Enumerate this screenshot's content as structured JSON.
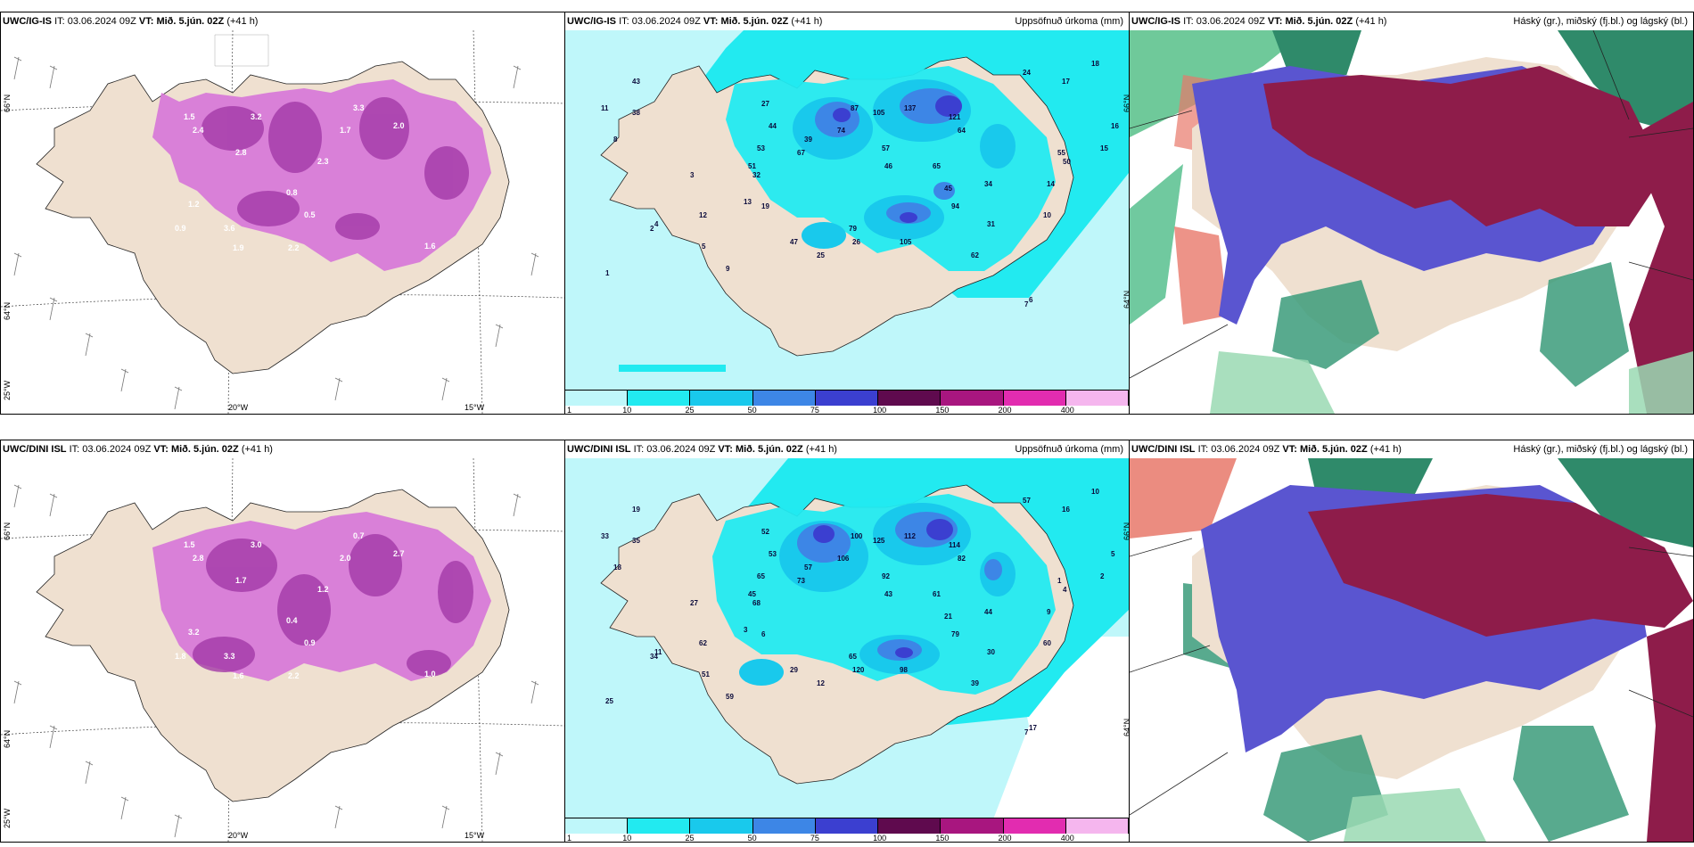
{
  "rows": [
    {
      "model": "UWC/IG-IS",
      "it_label": "IT:",
      "it_value": "03.06.2024 09Z",
      "vt_label": "VT:",
      "vt_value": "Mið. 5.jún. 02Z",
      "lead": "(+41 h)",
      "precip_labels": [
        {
          "v": "43"
        },
        {
          "v": "38"
        },
        {
          "v": "27"
        },
        {
          "v": "44"
        },
        {
          "v": "39"
        },
        {
          "v": "53"
        },
        {
          "v": "51"
        },
        {
          "v": "32"
        },
        {
          "v": "67"
        },
        {
          "v": "74"
        },
        {
          "v": "87"
        },
        {
          "v": "105"
        },
        {
          "v": "137"
        },
        {
          "v": "121"
        },
        {
          "v": "64"
        },
        {
          "v": "57"
        },
        {
          "v": "46"
        },
        {
          "v": "65"
        },
        {
          "v": "45"
        },
        {
          "v": "34"
        },
        {
          "v": "94"
        },
        {
          "v": "79"
        },
        {
          "v": "47"
        },
        {
          "v": "26"
        },
        {
          "v": "105"
        },
        {
          "v": "62"
        },
        {
          "v": "31"
        },
        {
          "v": "25"
        },
        {
          "v": "14"
        },
        {
          "v": "10"
        },
        {
          "v": "12"
        },
        {
          "v": "24"
        },
        {
          "v": "17"
        },
        {
          "v": "18"
        },
        {
          "v": "16"
        },
        {
          "v": "15"
        },
        {
          "v": "55"
        },
        {
          "v": "50"
        },
        {
          "v": "8"
        },
        {
          "v": "3"
        },
        {
          "v": "6"
        },
        {
          "v": "2"
        },
        {
          "v": "1"
        },
        {
          "v": "13"
        },
        {
          "v": "19"
        },
        {
          "v": "7"
        },
        {
          "v": "4"
        },
        {
          "v": "5"
        },
        {
          "v": "11"
        },
        {
          "v": "9"
        }
      ],
      "wind_labels": [
        "1.5",
        "2.4",
        "3.2",
        "2.8",
        "1.7",
        "0.8",
        "3.6",
        "1.9",
        "2.2",
        "1.6",
        "0.5",
        "2.3",
        "3.3",
        "1.2",
        "0.9",
        "2.0"
      ]
    },
    {
      "model": "UWC/DINI ISL",
      "it_label": "IT:",
      "it_value": "03.06.2024 09Z",
      "vt_label": "VT:",
      "vt_value": "Mið. 5.jún. 02Z",
      "lead": "(+41 h)",
      "precip_labels": [
        {
          "v": "19"
        },
        {
          "v": "35"
        },
        {
          "v": "52"
        },
        {
          "v": "53"
        },
        {
          "v": "57"
        },
        {
          "v": "65"
        },
        {
          "v": "45"
        },
        {
          "v": "68"
        },
        {
          "v": "73"
        },
        {
          "v": "106"
        },
        {
          "v": "100"
        },
        {
          "v": "125"
        },
        {
          "v": "112"
        },
        {
          "v": "114"
        },
        {
          "v": "82"
        },
        {
          "v": "92"
        },
        {
          "v": "43"
        },
        {
          "v": "61"
        },
        {
          "v": "21"
        },
        {
          "v": "44"
        },
        {
          "v": "79"
        },
        {
          "v": "65"
        },
        {
          "v": "29"
        },
        {
          "v": "120"
        },
        {
          "v": "98"
        },
        {
          "v": "39"
        },
        {
          "v": "30"
        },
        {
          "v": "12"
        },
        {
          "v": "9"
        },
        {
          "v": "60"
        },
        {
          "v": "62"
        },
        {
          "v": "57"
        },
        {
          "v": "16"
        },
        {
          "v": "10"
        },
        {
          "v": "5"
        },
        {
          "v": "2"
        },
        {
          "v": "1"
        },
        {
          "v": "4"
        },
        {
          "v": "18"
        },
        {
          "v": "27"
        },
        {
          "v": "17"
        },
        {
          "v": "34"
        },
        {
          "v": "25"
        },
        {
          "v": "3"
        },
        {
          "v": "6"
        },
        {
          "v": "7"
        },
        {
          "v": "11"
        },
        {
          "v": "51"
        },
        {
          "v": "33"
        },
        {
          "v": "59"
        }
      ],
      "wind_labels": [
        "1.5",
        "2.8",
        "3.0",
        "1.7",
        "2.0",
        "0.4",
        "3.3",
        "1.6",
        "2.2",
        "1.0",
        "0.9",
        "1.2",
        "0.7",
        "3.2",
        "1.8",
        "2.7"
      ]
    }
  ],
  "precip_title": "Uppsöfnuð úrkoma (mm)",
  "cloud_title": "Háský (gr.), miðský (fj.bl.) og lágský (bl.)",
  "axis": {
    "lat_66": "66°N",
    "lat_64": "64°N",
    "lon_25": "25°W",
    "lon_20": "20°W",
    "lon_15": "15°W"
  },
  "colorbar": {
    "ticks": [
      "1",
      "10",
      "25",
      "50",
      "75",
      "100",
      "150",
      "200",
      "400"
    ],
    "colors": [
      "#bff7fa",
      "#22eaf0",
      "#19c9ec",
      "#3d86e6",
      "#3b3fd0",
      "#5f0a4e",
      "#a8167f",
      "#e22cb0",
      "#f5b6ee"
    ]
  }
}
